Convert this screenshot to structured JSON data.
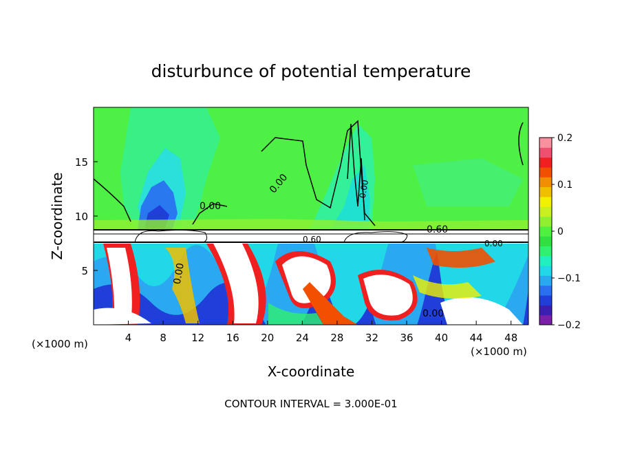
{
  "chart_data": {
    "type": "heatmap",
    "title": "disturbunce of potential temperature",
    "xlabel": "X-coordinate",
    "ylabel": "Z-coordinate",
    "x_unit_label": "(×1000 m)",
    "y_unit_label": "(×1000 m)",
    "footer": "CONTOUR INTERVAL = 3.000E-01",
    "xlim": [
      0,
      50
    ],
    "ylim": [
      0,
      20
    ],
    "x_ticks": [
      4,
      8,
      12,
      16,
      20,
      24,
      28,
      32,
      36,
      40,
      44,
      48
    ],
    "y_ticks": [
      5,
      10,
      15
    ],
    "colorbar": {
      "range": [
        -0.2,
        0.2
      ],
      "ticks": [
        "0.2",
        "0.1",
        "0",
        "−0.1",
        "−0.2"
      ],
      "tick_values": [
        0.2,
        0.1,
        0,
        -0.1,
        -0.2
      ],
      "colors": [
        "#7a1fa8",
        "#3a1fb0",
        "#1f3fd8",
        "#2a6ff0",
        "#2aa8f0",
        "#20d8e8",
        "#20f0c0",
        "#30f070",
        "#30e040",
        "#50f040",
        "#90f030",
        "#c8f020",
        "#f0f000",
        "#f0c000",
        "#f09000",
        "#f05000",
        "#f02020",
        "#f05070",
        "#f890a0"
      ]
    },
    "contour_labels": [
      "0.00",
      "0.00",
      "0.00",
      "0.60",
      "0.60",
      "0.00",
      "0.00",
      "0.00"
    ],
    "contour_interval": 0.3
  }
}
